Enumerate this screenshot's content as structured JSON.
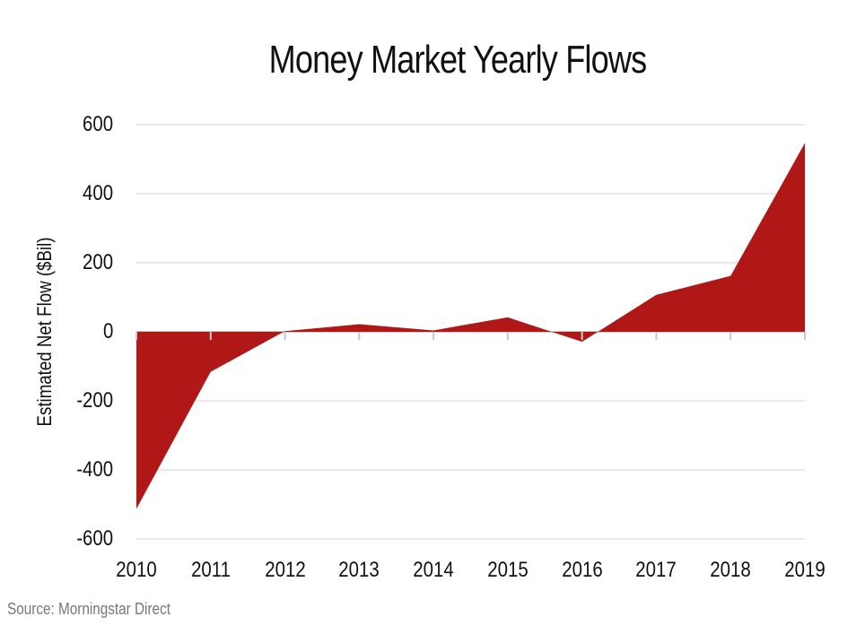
{
  "chart_data": {
    "type": "area",
    "title": "Money Market Yearly Flows",
    "xlabel": "",
    "ylabel": "Estimated Net Flow ($Bil)",
    "categories": [
      "2010",
      "2011",
      "2012",
      "2013",
      "2014",
      "2015",
      "2016",
      "2017",
      "2018",
      "2019"
    ],
    "series": [
      {
        "name": "Estimated Net Flow",
        "values": [
          -513,
          -116,
          2,
          22,
          4,
          42,
          -29,
          107,
          162,
          547
        ],
        "color": "#b01717"
      }
    ],
    "ylim": [
      -600,
      600
    ],
    "yticks": [
      600,
      400,
      200,
      0,
      -200,
      -400,
      -600
    ],
    "grid": true,
    "legend": "none"
  },
  "labels": {
    "title": "Money Market Yearly Flows",
    "ylabel": "Estimated Net Flow ($Bil)",
    "yticks": [
      "600",
      "400",
      "200",
      "0",
      "-200",
      "-400",
      "-600"
    ],
    "xticks": [
      "2010",
      "2011",
      "2012",
      "2013",
      "2014",
      "2015",
      "2016",
      "2017",
      "2018",
      "2019"
    ],
    "source": "Source: Morningstar Direct"
  }
}
